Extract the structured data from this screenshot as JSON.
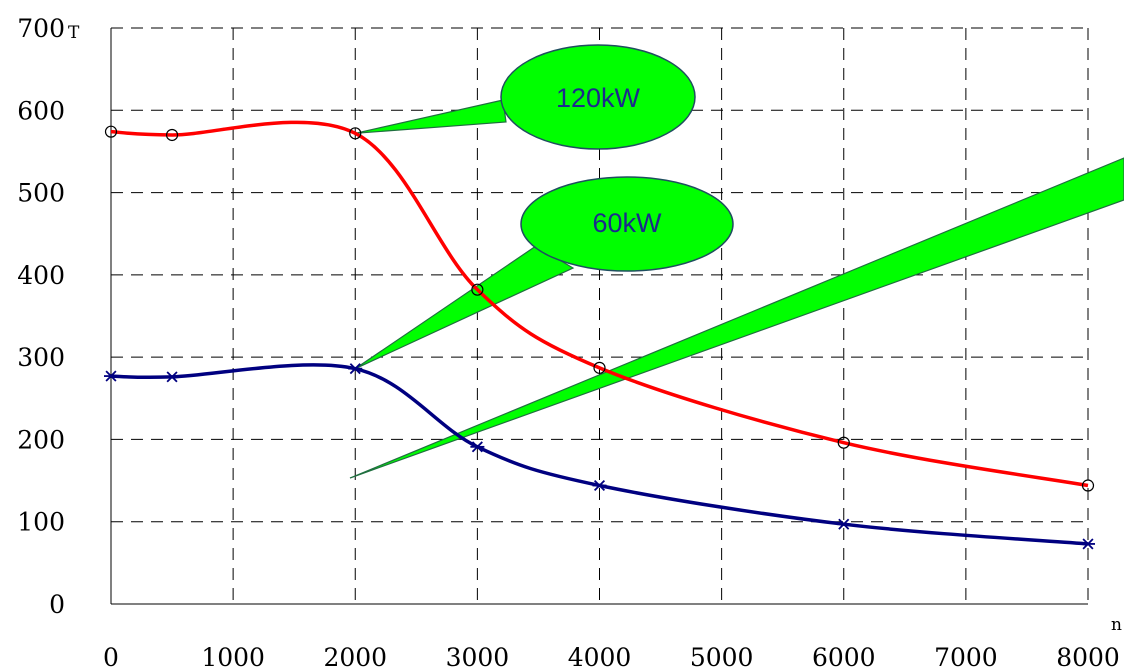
{
  "chart_data": {
    "type": "line",
    "xlabel": "n",
    "ylabel": "T",
    "xlim": [
      0,
      8000
    ],
    "ylim": [
      0,
      700
    ],
    "xticks": [
      0,
      1000,
      2000,
      3000,
      4000,
      5000,
      6000,
      7000,
      8000
    ],
    "yticks": [
      0,
      100,
      200,
      300,
      400,
      500,
      600,
      700
    ],
    "grid": true,
    "grid_style": "dashed",
    "series": [
      {
        "color": "#ff0000",
        "marker": "circle",
        "x": [
          0,
          500,
          2000,
          3000,
          4000,
          6000,
          8000
        ],
        "y": [
          574,
          570,
          572,
          382,
          287,
          196,
          144
        ],
        "label_ref": "callouts.0"
      },
      {
        "color": "#000080",
        "marker": "asterisk",
        "x": [
          0,
          500,
          2000,
          3000,
          4000,
          6000,
          8000
        ],
        "y": [
          277,
          276,
          286,
          191,
          144,
          97,
          73
        ],
        "label_ref": "callouts.1"
      }
    ],
    "callouts": [
      {
        "text": "120kW",
        "points_to": [
          2000,
          572
        ],
        "fill": "#00ff00"
      },
      {
        "text": "60kW",
        "points_to": [
          2000,
          286
        ],
        "fill": "#00ff00"
      }
    ]
  }
}
